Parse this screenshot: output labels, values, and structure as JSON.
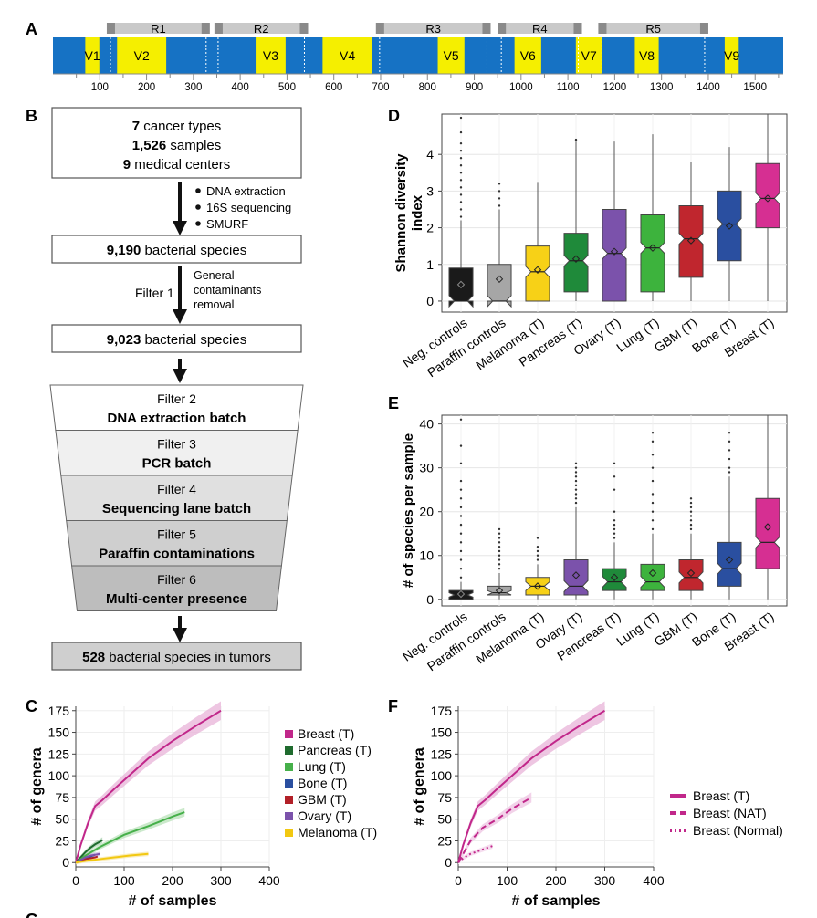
{
  "panel_labels": {
    "a": "A",
    "b": "B",
    "c": "C",
    "d": "D",
    "e": "E",
    "f": "F",
    "g": "G"
  },
  "panel_a": {
    "regions": [
      {
        "label": "R1",
        "start": 115,
        "end": 335
      },
      {
        "label": "R2",
        "start": 345,
        "end": 545
      },
      {
        "label": "R3",
        "start": 690,
        "end": 935
      },
      {
        "label": "R4",
        "start": 950,
        "end": 1130
      },
      {
        "label": "R5",
        "start": 1165,
        "end": 1400
      }
    ],
    "variable_regions": [
      {
        "label": "V1",
        "start": 69,
        "end": 99
      },
      {
        "label": "V2",
        "start": 137,
        "end": 242
      },
      {
        "label": "V3",
        "start": 433,
        "end": 497
      },
      {
        "label": "V4",
        "start": 576,
        "end": 682
      },
      {
        "label": "V5",
        "start": 822,
        "end": 879
      },
      {
        "label": "V6",
        "start": 986,
        "end": 1043
      },
      {
        "label": "V7",
        "start": 1117,
        "end": 1173
      },
      {
        "label": "V8",
        "start": 1243,
        "end": 1294
      },
      {
        "label": "V9",
        "start": 1435,
        "end": 1465
      }
    ],
    "axis_ticks": [
      "100",
      "200",
      "300",
      "400",
      "500",
      "600",
      "700",
      "800",
      "900",
      "1000",
      "1100",
      "1200",
      "1300",
      "1400",
      "1500"
    ],
    "colors": {
      "backbone": "#1672c4",
      "variable": "#f5ef00",
      "region": "#c9c9c9",
      "region_end": "#8a8a8a"
    }
  },
  "panel_b": {
    "box1": {
      "n1": "7",
      "t1": " cancer types",
      "n2": "1,526",
      "t2": " samples",
      "n3": "9",
      "t3": " medical centers"
    },
    "steps1": [
      "DNA extraction",
      "16S sequencing",
      "SMURF"
    ],
    "box2": {
      "n": "9,190",
      "t": " bacterial species"
    },
    "filter1_label": "Filter 1",
    "filter1_desc": [
      "General",
      "contaminants",
      "removal"
    ],
    "box3": {
      "n": "9,023",
      "t": " bacterial species"
    },
    "funnel": [
      {
        "title": "Filter 2",
        "desc": "DNA extraction batch",
        "fill": "#ffffff"
      },
      {
        "title": "Filter 3",
        "desc": "PCR batch",
        "fill": "#f0f0f0"
      },
      {
        "title": "Filter 4",
        "desc": "Sequencing lane batch",
        "fill": "#e0e0e0"
      },
      {
        "title": "Filter 5",
        "desc": "Paraffin contaminations",
        "fill": "#cfcfcf"
      },
      {
        "title": "Filter 6",
        "desc": "Multi-center presence",
        "fill": "#bdbdbd"
      }
    ],
    "box_final": {
      "n": "528",
      "t": " bacterial species in tumors"
    }
  },
  "chart_data": [
    {
      "panel": "D",
      "type": "boxplot",
      "ylabel": "Shannon diversity index",
      "ylim": [
        -0.3,
        5.1
      ],
      "yticks": [
        "0",
        "1",
        "2",
        "3",
        "4"
      ],
      "categories": [
        "Neg. controls",
        "Paraffin controls",
        "Melanoma (T)",
        "Pancreas (T)",
        "Ovary (T)",
        "Lung (T)",
        "GBM (T)",
        "Bone (T)",
        "Breast (T)"
      ],
      "colors": [
        "#1a1a1a",
        "#a6a6a6",
        "#f7d117",
        "#1f8a3a",
        "#7b52ab",
        "#3db33d",
        "#c0262e",
        "#2a4fa0",
        "#d62f92"
      ],
      "boxes": [
        {
          "q1": 0,
          "median": 0,
          "q3": 0.9,
          "wlo": 0,
          "whi": 2.2,
          "mean": 0.45
        },
        {
          "q1": 0,
          "median": 0,
          "q3": 1.0,
          "wlo": 0,
          "whi": 2.5,
          "mean": 0.6
        },
        {
          "q1": 0,
          "median": 0.8,
          "q3": 1.5,
          "wlo": 0,
          "whi": 3.25,
          "mean": 0.85
        },
        {
          "q1": 0.25,
          "median": 1.1,
          "q3": 1.85,
          "wlo": 0,
          "whi": 4.35,
          "mean": 1.15
        },
        {
          "q1": 0,
          "median": 1.3,
          "q3": 2.5,
          "wlo": 0,
          "whi": 4.35,
          "mean": 1.35
        },
        {
          "q1": 0.25,
          "median": 1.45,
          "q3": 2.35,
          "wlo": 0,
          "whi": 4.55,
          "mean": 1.45
        },
        {
          "q1": 0.65,
          "median": 1.7,
          "q3": 2.6,
          "wlo": 0,
          "whi": 3.8,
          "mean": 1.65
        },
        {
          "q1": 1.1,
          "median": 2.1,
          "q3": 3.0,
          "wlo": 0,
          "whi": 4.2,
          "mean": 2.05
        },
        {
          "q1": 2.0,
          "median": 2.8,
          "q3": 3.75,
          "wlo": 0,
          "whi": 5.1,
          "mean": 2.8
        }
      ],
      "outliers": [
        [
          0,
          [
            2.3,
            2.5,
            2.7,
            2.9,
            3.1,
            3.3,
            3.5,
            3.7,
            3.9,
            4.1,
            4.3,
            4.6,
            5.0
          ]
        ],
        [
          1,
          [
            2.6,
            2.8,
            3.0,
            3.2
          ]
        ],
        [
          3,
          [
            4.4
          ]
        ]
      ]
    },
    {
      "panel": "E",
      "type": "boxplot",
      "ylabel": "# of species per sample",
      "ylim": [
        -1.5,
        42
      ],
      "yticks": [
        "0",
        "10",
        "20",
        "30",
        "40"
      ],
      "categories": [
        "Neg. controls",
        "Paraffin controls",
        "Melanoma (T)",
        "Ovary (T)",
        "Pancreas (T)",
        "Lung (T)",
        "GBM (T)",
        "Bone (T)",
        "Breast (T)"
      ],
      "colors": [
        "#1a1a1a",
        "#a6a6a6",
        "#f7d117",
        "#7b52ab",
        "#1f8a3a",
        "#3db33d",
        "#c0262e",
        "#2a4fa0",
        "#d62f92"
      ],
      "boxes": [
        {
          "q1": 0,
          "median": 1,
          "q3": 2,
          "wlo": 0,
          "whi": 4,
          "mean": 1.2
        },
        {
          "q1": 1,
          "median": 1.5,
          "q3": 3,
          "wlo": 0,
          "whi": 6,
          "mean": 2
        },
        {
          "q1": 1,
          "median": 3,
          "q3": 5,
          "wlo": 0,
          "whi": 8,
          "mean": 3
        },
        {
          "q1": 1,
          "median": 3,
          "q3": 9,
          "wlo": 0,
          "whi": 21,
          "mean": 5.5
        },
        {
          "q1": 2,
          "median": 4,
          "q3": 7,
          "wlo": 0,
          "whi": 13,
          "mean": 5
        },
        {
          "q1": 2,
          "median": 4,
          "q3": 8,
          "wlo": 0,
          "whi": 15,
          "mean": 6
        },
        {
          "q1": 2,
          "median": 5,
          "q3": 9,
          "wlo": 0,
          "whi": 15,
          "mean": 6
        },
        {
          "q1": 3,
          "median": 7,
          "q3": 13,
          "wlo": 0,
          "whi": 28,
          "mean": 9
        },
        {
          "q1": 7,
          "median": 13,
          "q3": 23,
          "wlo": 0,
          "whi": 42,
          "mean": 16.5
        }
      ],
      "outliers": [
        [
          0,
          [
            5,
            7,
            9,
            11,
            13,
            15,
            17,
            19,
            21,
            23,
            25,
            27,
            31,
            35,
            41
          ]
        ],
        [
          1,
          [
            7,
            8,
            9,
            10,
            11,
            12,
            13,
            14,
            15,
            16
          ]
        ],
        [
          2,
          [
            9,
            10,
            11,
            12,
            14
          ]
        ],
        [
          3,
          [
            22,
            23,
            24,
            25,
            26,
            27,
            28,
            29,
            30,
            31
          ]
        ],
        [
          4,
          [
            14,
            15,
            16,
            17,
            18,
            20,
            25,
            28,
            31
          ]
        ],
        [
          5,
          [
            16,
            18,
            20,
            22,
            24,
            27,
            30,
            33,
            36,
            38
          ]
        ],
        [
          6,
          [
            16,
            17,
            18,
            19,
            20,
            21,
            22,
            23
          ]
        ],
        [
          7,
          [
            29,
            30,
            32,
            34,
            36,
            38
          ]
        ]
      ]
    },
    {
      "panel": "C",
      "type": "line",
      "xlabel": "# of samples",
      "ylabel": "# of genera",
      "xlim": [
        0,
        400
      ],
      "ylim": [
        -5,
        180
      ],
      "xticks": [
        "0",
        "100",
        "200",
        "300",
        "400"
      ],
      "yticks": [
        "0",
        "25",
        "50",
        "75",
        "100",
        "125",
        "150",
        "175"
      ],
      "series": [
        {
          "name": "Breast (T)",
          "color": "#c1278a",
          "band": "#e8b3d8",
          "x": [
            0,
            10,
            25,
            40,
            55,
            80,
            110,
            150,
            200,
            250,
            300
          ],
          "y": [
            0,
            20,
            45,
            65,
            72,
            85,
            100,
            120,
            140,
            158,
            175
          ]
        },
        {
          "name": "Pancreas (T)",
          "color": "#1f6b2e",
          "band": "#a9d1b0",
          "x": [
            0,
            10,
            20,
            30,
            40,
            50,
            55
          ],
          "y": [
            0,
            6,
            12,
            17,
            21,
            24,
            26
          ]
        },
        {
          "name": "Lung (T)",
          "color": "#46b04a",
          "band": "#b9e2ba",
          "x": [
            0,
            20,
            50,
            100,
            150,
            200,
            225
          ],
          "y": [
            0,
            8,
            18,
            32,
            42,
            53,
            58
          ]
        },
        {
          "name": "Bone (T)",
          "color": "#2a4fa0",
          "band": "#b3c2e3",
          "x": [
            0,
            10,
            20,
            30,
            40
          ],
          "y": [
            0,
            3,
            5,
            7,
            9
          ]
        },
        {
          "name": "GBM (T)",
          "color": "#b22028",
          "band": "#e6b1b3",
          "x": [
            0,
            10,
            20,
            30,
            40,
            45
          ],
          "y": [
            0,
            2,
            4,
            5,
            6,
            7
          ]
        },
        {
          "name": "Ovary (T)",
          "color": "#7b52ab",
          "band": "#cdbfe3",
          "x": [
            0,
            10,
            20,
            30,
            40,
            50
          ],
          "y": [
            0,
            3,
            6,
            8,
            9,
            10
          ]
        },
        {
          "name": "Melanoma (T)",
          "color": "#f2c811",
          "band": "#f8e7a6",
          "x": [
            0,
            20,
            50,
            80,
            110,
            150
          ],
          "y": [
            0,
            2,
            4,
            6,
            8,
            10
          ]
        }
      ]
    },
    {
      "panel": "F",
      "type": "line",
      "xlabel": "# of samples",
      "ylabel": "# of genera",
      "xlim": [
        0,
        400
      ],
      "ylim": [
        -5,
        180
      ],
      "xticks": [
        "0",
        "100",
        "200",
        "300",
        "400"
      ],
      "yticks": [
        "0",
        "25",
        "50",
        "75",
        "100",
        "125",
        "150",
        "175"
      ],
      "series": [
        {
          "name": "Breast (T)",
          "color": "#c1278a",
          "band": "#e8b3d8",
          "dash": "",
          "x": [
            0,
            10,
            25,
            40,
            55,
            80,
            110,
            150,
            200,
            250,
            300
          ],
          "y": [
            0,
            20,
            45,
            65,
            72,
            85,
            100,
            120,
            140,
            158,
            175
          ]
        },
        {
          "name": "Breast (NAT)",
          "color": "#c1278a",
          "band": "#eec3e1",
          "dash": "7,4",
          "x": [
            0,
            10,
            25,
            50,
            80,
            110,
            150
          ],
          "y": [
            0,
            10,
            25,
            40,
            50,
            62,
            75
          ]
        },
        {
          "name": "Breast (Normal)",
          "color": "#c1278a",
          "band": "#f3d2e9",
          "dash": "2,3",
          "x": [
            0,
            10,
            25,
            40,
            55,
            70
          ],
          "y": [
            0,
            5,
            10,
            13,
            16,
            19
          ]
        }
      ]
    }
  ]
}
